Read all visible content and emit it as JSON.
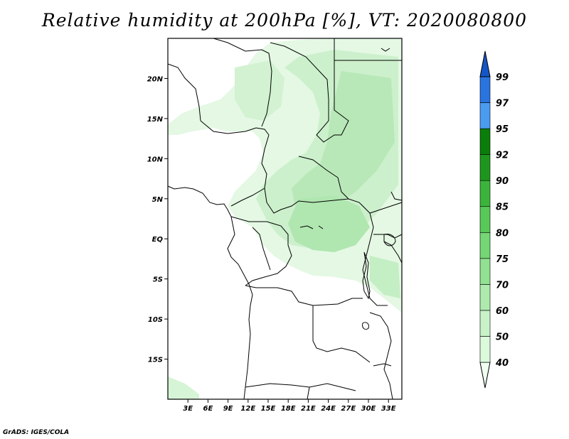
{
  "title": "Relative humidity at 200hPa [%], VT: 2020080800",
  "credit": "GrADS: IGES/COLA",
  "map": {
    "lon_range": [
      0,
      35
    ],
    "lat_range": [
      -20,
      25
    ],
    "x_ticks": [
      "3E",
      "6E",
      "9E",
      "12E",
      "15E",
      "18E",
      "21E",
      "24E",
      "27E",
      "30E",
      "33E"
    ],
    "x_tick_values": [
      3,
      6,
      9,
      12,
      15,
      18,
      21,
      24,
      27,
      30,
      33
    ],
    "y_ticks": [
      "20N",
      "15N",
      "10N",
      "5N",
      "EQ",
      "5S",
      "10S",
      "15S"
    ],
    "y_tick_values": [
      20,
      15,
      10,
      5,
      0,
      -5,
      -10,
      -15
    ]
  },
  "colorbar": {
    "levels": [
      "40",
      "50",
      "60",
      "70",
      "75",
      "80",
      "85",
      "90",
      "92",
      "95",
      "97",
      "99"
    ],
    "colors": [
      "#f0fff0",
      "#dcf9dc",
      "#c8f2c8",
      "#aeeaae",
      "#92e092",
      "#74d674",
      "#58c858",
      "#3cb43c",
      "#1e961e",
      "#0a7d0a",
      "#4a9cf0",
      "#2a74e0",
      "#1456c8"
    ]
  }
}
